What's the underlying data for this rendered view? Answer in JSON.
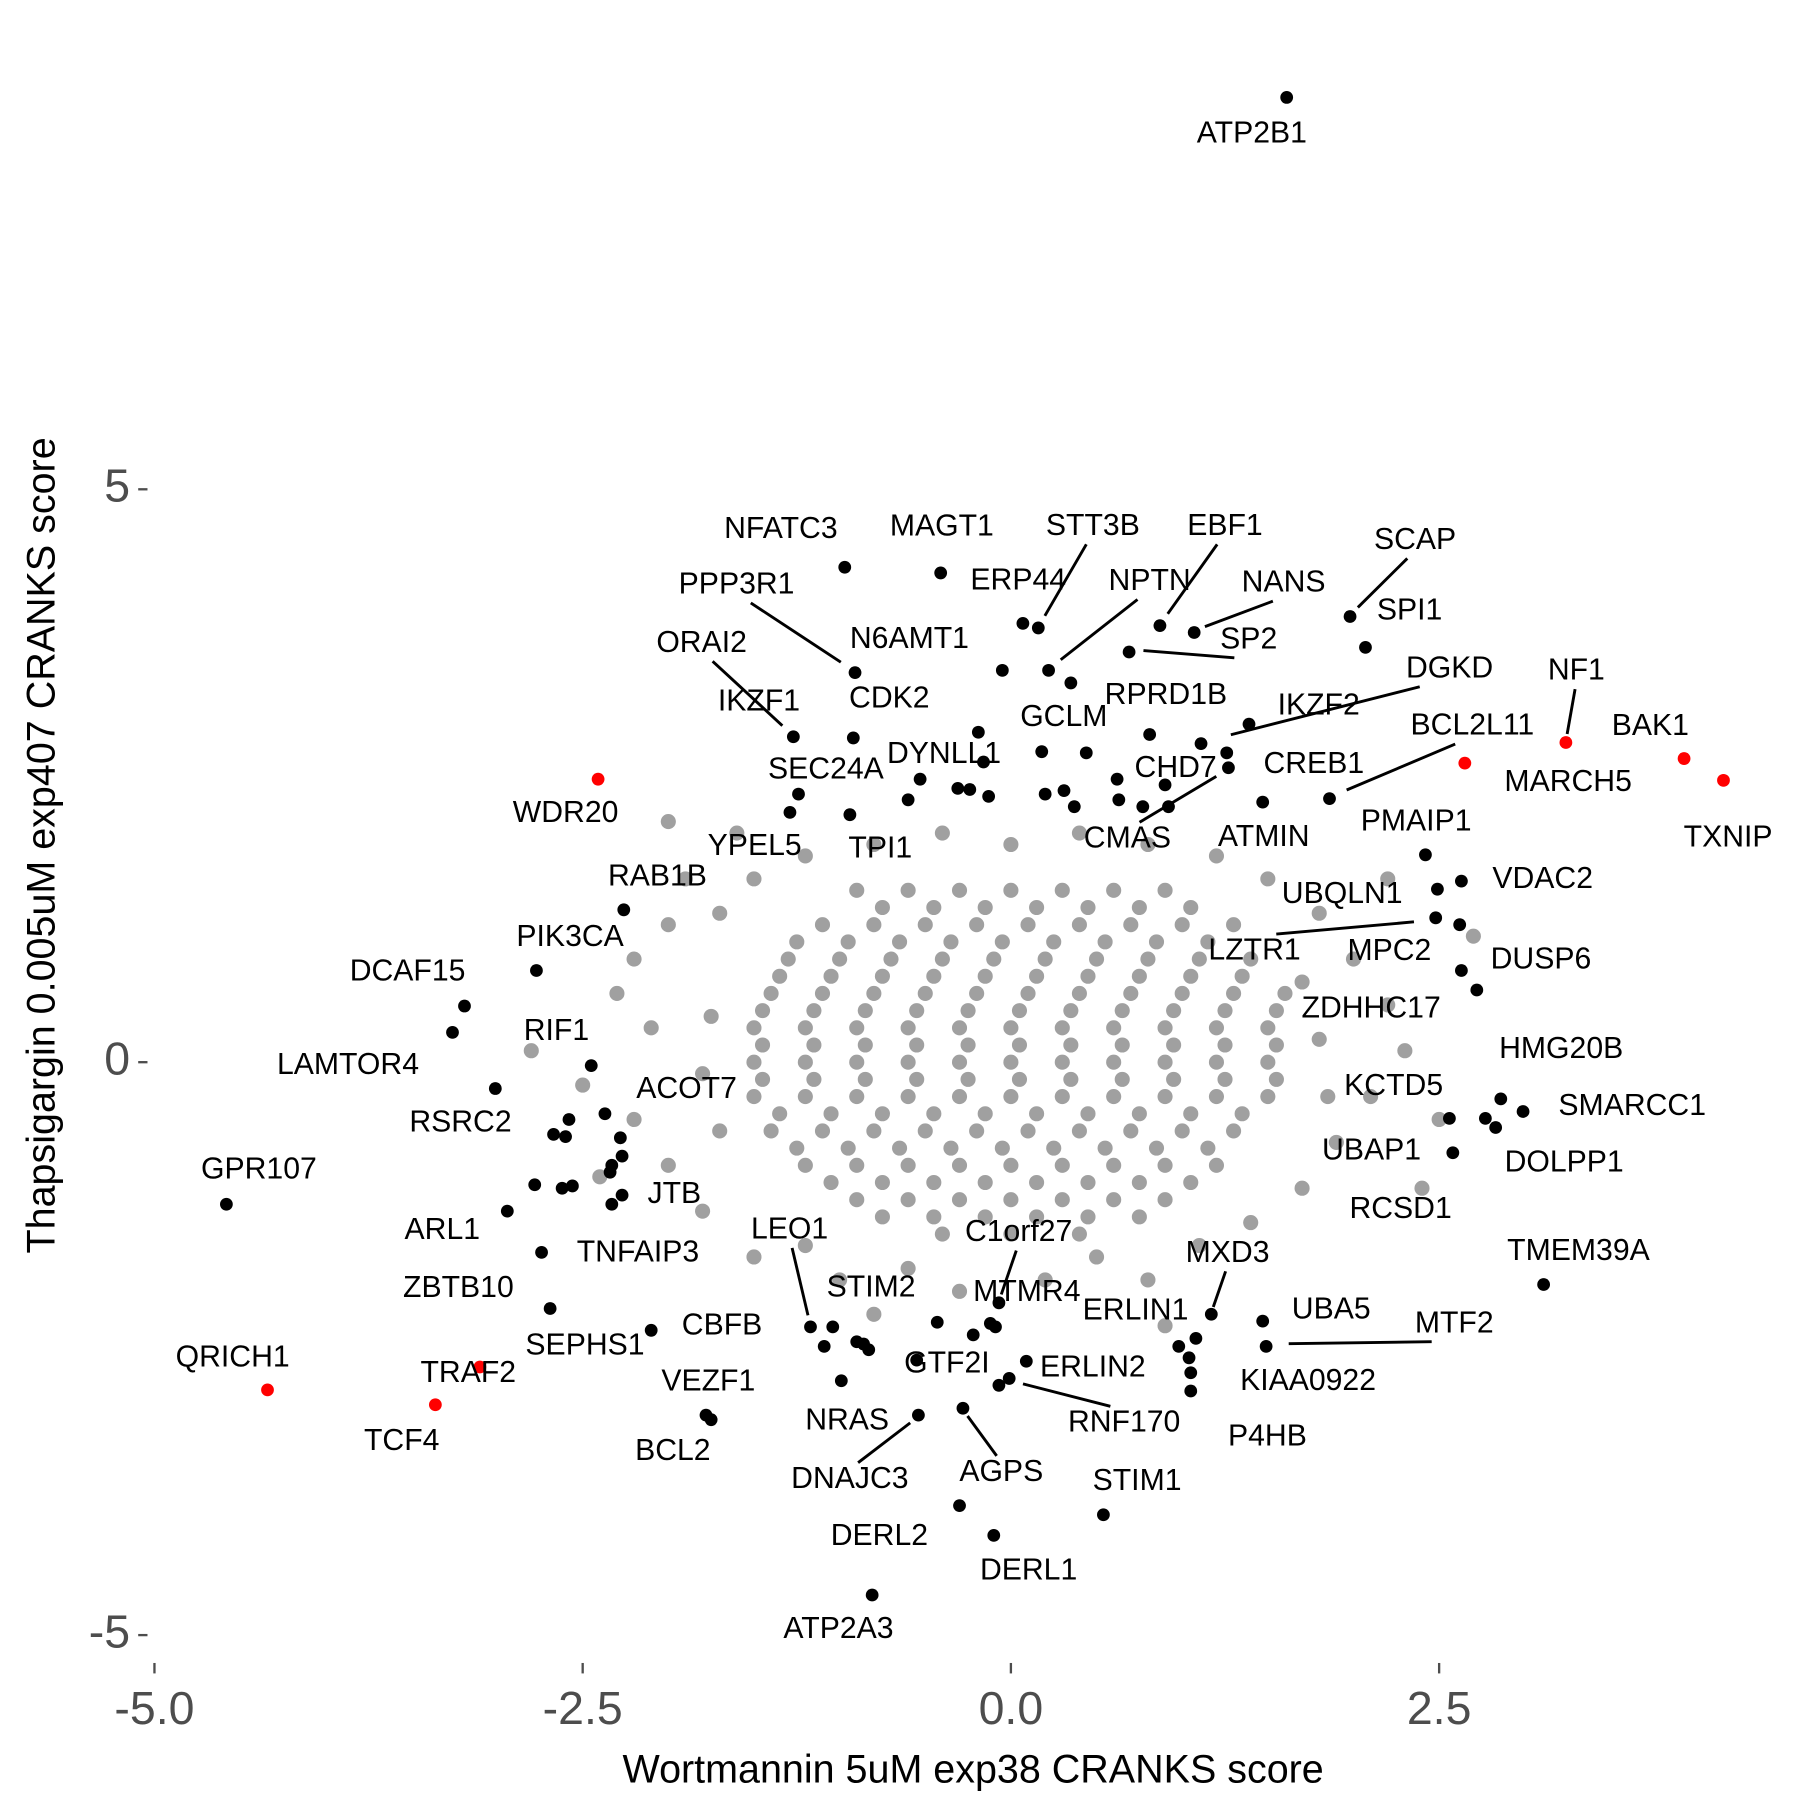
{
  "chart_data": {
    "type": "scatter",
    "x_label": "Wortmannin 5uM exp38 CRANKS score",
    "y_label": "Thapsigargin 0.005uM exp407 CRANKS score",
    "xlim": [
      -5,
      4.6
    ],
    "ylim": [
      -5,
      8.5
    ],
    "xticks": [
      {
        "value": -5,
        "label": "-5.0"
      },
      -2.5,
      {
        "value": 0,
        "label": "0.0"
      },
      2.5
    ],
    "yticks": [
      -5,
      0,
      5
    ],
    "grid": false,
    "series": [
      {
        "color": "#a0a0a0",
        "x": [
          -0.9,
          -0.6,
          -0.3,
          0,
          0.3,
          0.6,
          0.9,
          -0.75,
          -0.45,
          -0.15,
          0.15,
          0.45,
          0.75,
          1.05,
          -1.1,
          -0.8,
          -0.5,
          -0.2,
          0.1,
          0.4,
          0.7,
          1.0,
          1.3,
          -1.25,
          -0.95,
          -0.65,
          -0.35,
          -0.05,
          0.25,
          0.55,
          0.85,
          1.15,
          -1.3,
          -1.0,
          -0.7,
          -0.4,
          -0.1,
          0.2,
          0.5,
          0.8,
          1.1,
          1.4,
          -1.35,
          -1.05,
          -0.75,
          -0.45,
          -0.15,
          0.15,
          0.45,
          0.75,
          1.05,
          1.35,
          -1.4,
          -1.1,
          -0.8,
          -0.5,
          -0.2,
          0.1,
          0.4,
          0.7,
          1.0,
          1.3,
          1.6,
          -1.45,
          -1.15,
          -0.85,
          -0.55,
          -0.25,
          0.05,
          0.35,
          0.65,
          0.95,
          1.25,
          1.55,
          -1.5,
          -1.2,
          -0.9,
          -0.6,
          -0.3,
          0,
          0.3,
          0.6,
          0.9,
          1.2,
          1.5,
          -1.45,
          -1.15,
          -0.85,
          -0.55,
          -0.25,
          0.05,
          0.35,
          0.65,
          0.95,
          1.25,
          1.55,
          -1.5,
          -1.2,
          -0.9,
          -0.6,
          -0.3,
          0,
          0.3,
          0.6,
          0.9,
          1.2,
          1.5,
          -1.45,
          -1.15,
          -0.85,
          -0.55,
          -0.25,
          0.05,
          0.35,
          0.65,
          0.95,
          1.25,
          1.55,
          -1.5,
          -1.2,
          -0.9,
          -0.6,
          -0.3,
          0,
          0.3,
          0.6,
          0.9,
          1.2,
          1.5,
          -1.35,
          -1.05,
          -0.75,
          -0.45,
          -0.15,
          0.15,
          0.45,
          0.75,
          1.05,
          1.35,
          -1.4,
          -1.1,
          -0.8,
          -0.5,
          -0.2,
          0.1,
          0.4,
          0.7,
          1.0,
          1.3,
          -1.25,
          -0.95,
          -0.65,
          -0.35,
          -0.05,
          0.25,
          0.55,
          0.85,
          1.15,
          -1.2,
          -0.9,
          -0.6,
          -0.3,
          0,
          0.3,
          0.6,
          0.9,
          1.2,
          -1.05,
          -0.75,
          -0.45,
          -0.15,
          0.15,
          0.45,
          0.75,
          1.05,
          -0.9,
          -0.6,
          -0.3,
          0,
          0.3,
          0.6,
          0.9,
          -0.75,
          -0.45,
          -0.15,
          0.15,
          0.45,
          0.75,
          -0.4,
          0,
          0.4,
          -1.9,
          -2.0,
          -2.2,
          -2.3,
          -2.1,
          -2.5,
          -2.2,
          -2.0,
          -1.8,
          -1.5,
          -1.2,
          -1.0,
          -0.6,
          -0.3,
          0.2,
          0.5,
          0.8,
          1.1,
          1.4,
          1.7,
          1.9,
          2.1,
          2.3,
          2.2,
          2.0,
          1.8,
          1.5,
          1.2,
          0.8,
          0.4,
          0,
          -0.4,
          -0.8,
          -1.2,
          -1.5,
          -1.7,
          -1.75,
          -1.8,
          -1.7,
          1.8,
          1.85,
          1.7,
          -2.0,
          2.7,
          2.5,
          -2.4,
          -1.6,
          0.9,
          -0.8,
          2.2,
          -2.8,
          2.4
        ],
        "y": [
          1.5,
          1.5,
          1.5,
          1.5,
          1.5,
          1.5,
          1.5,
          1.35,
          1.35,
          1.35,
          1.35,
          1.35,
          1.35,
          1.35,
          1.2,
          1.2,
          1.2,
          1.2,
          1.2,
          1.2,
          1.2,
          1.2,
          1.2,
          1.05,
          1.05,
          1.05,
          1.05,
          1.05,
          1.05,
          1.05,
          1.05,
          1.05,
          0.9,
          0.9,
          0.9,
          0.9,
          0.9,
          0.9,
          0.9,
          0.9,
          0.9,
          0.9,
          0.75,
          0.75,
          0.75,
          0.75,
          0.75,
          0.75,
          0.75,
          0.75,
          0.75,
          0.75,
          0.6,
          0.6,
          0.6,
          0.6,
          0.6,
          0.6,
          0.6,
          0.6,
          0.6,
          0.6,
          0.6,
          0.45,
          0.45,
          0.45,
          0.45,
          0.45,
          0.45,
          0.45,
          0.45,
          0.45,
          0.45,
          0.45,
          0.3,
          0.3,
          0.3,
          0.3,
          0.3,
          0.3,
          0.3,
          0.3,
          0.3,
          0.3,
          0.3,
          0.15,
          0.15,
          0.15,
          0.15,
          0.15,
          0.15,
          0.15,
          0.15,
          0.15,
          0.15,
          0.15,
          0,
          0,
          0,
          0,
          0,
          0,
          0,
          0,
          0,
          0,
          0,
          -0.15,
          -0.15,
          -0.15,
          -0.15,
          -0.15,
          -0.15,
          -0.15,
          -0.15,
          -0.15,
          -0.15,
          -0.15,
          -0.3,
          -0.3,
          -0.3,
          -0.3,
          -0.3,
          -0.3,
          -0.3,
          -0.3,
          -0.3,
          -0.3,
          -0.3,
          -0.45,
          -0.45,
          -0.45,
          -0.45,
          -0.45,
          -0.45,
          -0.45,
          -0.45,
          -0.45,
          -0.45,
          -0.6,
          -0.6,
          -0.6,
          -0.6,
          -0.6,
          -0.6,
          -0.6,
          -0.6,
          -0.6,
          -0.6,
          -0.75,
          -0.75,
          -0.75,
          -0.75,
          -0.75,
          -0.75,
          -0.75,
          -0.75,
          -0.75,
          -0.9,
          -0.9,
          -0.9,
          -0.9,
          -0.9,
          -0.9,
          -0.9,
          -0.9,
          -0.9,
          -1.05,
          -1.05,
          -1.05,
          -1.05,
          -1.05,
          -1.05,
          -1.05,
          -1.05,
          -1.2,
          -1.2,
          -1.2,
          -1.2,
          -1.2,
          -1.2,
          -1.2,
          -1.35,
          -1.35,
          -1.35,
          -1.35,
          -1.35,
          -1.35,
          -1.5,
          -1.5,
          -1.5,
          1.6,
          1.2,
          0.9,
          0.6,
          0.3,
          -0.2,
          -0.5,
          -0.9,
          -1.3,
          -1.7,
          -1.6,
          -1.9,
          -1.8,
          -2.0,
          -1.9,
          -1.7,
          -1.9,
          -1.6,
          -1.4,
          -1.1,
          -0.7,
          -0.3,
          0.1,
          0.5,
          0.9,
          1.3,
          1.6,
          1.8,
          1.9,
          2.0,
          1.9,
          2.0,
          1.9,
          1.8,
          1.6,
          1.3,
          0.4,
          -0.1,
          -0.6,
          0.2,
          -0.3,
          0.7,
          2.1,
          1.1,
          -0.5,
          -1.0,
          2.0,
          -2.3,
          -2.2,
          1.6,
          0.1,
          -1.1
        ]
      },
      {
        "color": "#000000",
        "labels": [
          "ATP2B1",
          "NFATC3",
          "MAGT1",
          "STT3B",
          "EBF1",
          "SCAP",
          "ERP44",
          "NPTN",
          "NANS",
          "SP2",
          "SPI1",
          "PPP3R1",
          "ORAI2",
          "N6AMT1",
          "CDK2",
          "IKZF1",
          "GCLM",
          "RPRD1B",
          "DGKD",
          "IKZF2",
          "BCL2L11",
          "DYNLL1",
          "SEC24A",
          "CHD7",
          "CREB1",
          "CMAS",
          "ATMIN",
          "YPEL5",
          "TPI1",
          "PMAIP1",
          "VDAC2",
          "RAB1B",
          "UBQLN1",
          "PIK3CA",
          "LZTR1",
          "MPC2",
          "DUSP6",
          "DCAF15",
          "ZDHHC17",
          "LAMTOR4",
          "RIF1",
          "HMG20B",
          "SMARCC1",
          "KCTD5",
          "ACOT7",
          "RSRC2",
          "UBAP1",
          "DOLPP1",
          "GPR107",
          "JTB",
          "RCSD1",
          "ARL1",
          "LEO1",
          "C1orf27",
          "TNFAIP3",
          "MXD3",
          "TMEM39A",
          "ZBTB10",
          "STIM2",
          "MTMR4",
          "ERLIN1",
          "UBA5",
          "MTF2",
          "CBFB",
          "SEPHS1",
          "VEZF1",
          "BCL2",
          "GTF2I",
          "ERLIN2",
          "KIAA0922",
          "RNF170",
          "NRAS",
          "P4HB",
          "DNAJC3",
          "AGPS",
          "STIM1",
          "DERL2",
          "DERL1",
          "ATP2A3"
        ],
        "x": [
          1.61,
          -0.97,
          -0.41,
          0.16,
          0.87,
          1.98,
          0.07,
          0.22,
          1.07,
          0.69,
          2.07,
          -0.91,
          -1.27,
          -0.05,
          -0.92,
          -1.24,
          0.18,
          0.81,
          1.11,
          1.39,
          1.86,
          -0.16,
          -1.29,
          1.26,
          1.47,
          1.27,
          0.92,
          -0.94,
          -0.6,
          2.42,
          2.63,
          -2.26,
          2.49,
          -2.77,
          2.48,
          2.63,
          2.62,
          -3.19,
          2.72,
          -3.26,
          -2.45,
          2.86,
          2.99,
          2.56,
          -2.28,
          -3.01,
          2.58,
          2.83,
          -4.58,
          -2.27,
          2.77,
          -2.94,
          -1.17,
          -0.07,
          -2.74,
          1.17,
          3.11,
          -2.69,
          -1.04,
          -0.09,
          1.08,
          1.47,
          1.49,
          -0.9,
          -2.1,
          -1.78,
          -1.75,
          -0.55,
          0.98,
          1.05,
          -0.01,
          -0.99,
          1.05,
          -0.54,
          -0.28,
          0.54,
          -0.3,
          -0.1,
          -0.81
        ],
        "y": [
          8.42,
          4.32,
          4.27,
          3.79,
          3.81,
          3.89,
          3.83,
          3.42,
          3.75,
          3.58,
          3.62,
          3.4,
          2.84,
          3.42,
          2.83,
          2.34,
          2.71,
          2.86,
          2.78,
          2.95,
          2.3,
          2.62,
          2.18,
          2.7,
          2.27,
          2.57,
          2.23,
          2.16,
          2.29,
          1.81,
          1.58,
          1.33,
          1.51,
          0.8,
          1.26,
          0.8,
          1.2,
          0.49,
          0.63,
          0.26,
          -0.03,
          -0.32,
          -0.43,
          -0.49,
          -0.66,
          -0.23,
          -0.79,
          -0.57,
          -1.24,
          -1.16,
          -0.49,
          -1.3,
          -2.31,
          -2.1,
          -1.66,
          -2.2,
          -1.94,
          -2.15,
          -2.31,
          -2.31,
          -2.41,
          -2.26,
          -2.48,
          -2.44,
          -2.34,
          -3.08,
          -3.12,
          -2.6,
          -2.48,
          -2.71,
          -2.76,
          -2.78,
          -2.87,
          -3.08,
          -3.02,
          -3.95,
          -3.87,
          -4.13,
          -4.65
        ]
      },
      {
        "color": "#000000",
        "x": [
          0.35,
          0.44,
          0.31,
          0.2,
          0.37,
          0.62,
          0.63,
          0.77,
          0.9,
          -0.19,
          -0.31,
          -0.24,
          -0.13,
          -0.53,
          -2.67,
          -2.6,
          -2.58,
          -2.37,
          -2.27,
          -2.33,
          -2.34,
          -2.78,
          -2.62,
          -2.56,
          -2.33,
          -1.09,
          -0.83,
          -0.86,
          -0.43,
          -0.22,
          -0.12,
          -0.07,
          0.09,
          1.04
        ],
        "y": [
          3.31,
          2.7,
          2.37,
          2.34,
          2.23,
          2.47,
          2.29,
          2.23,
          2.42,
          2.88,
          2.39,
          2.38,
          2.32,
          2.47,
          -0.63,
          -0.65,
          -0.5,
          -0.45,
          -0.82,
          -0.9,
          -0.96,
          -1.07,
          -1.1,
          -1.08,
          -1.24,
          -2.48,
          -2.51,
          -2.46,
          -2.27,
          -2.38,
          -2.28,
          -2.82,
          -2.61,
          -2.58
        ]
      },
      {
        "color": "#ff0000",
        "labels": [
          "NF1",
          "BAK1",
          "MARCH5",
          "TXNIP",
          "WDR20",
          "QRICH1",
          "TRAF2",
          "TCF4"
        ],
        "x": [
          3.24,
          3.93,
          2.65,
          4.16,
          -2.41,
          -4.34,
          -3.1,
          -3.36
        ],
        "y": [
          2.79,
          2.65,
          2.61,
          2.46,
          2.47,
          -2.86,
          -2.66,
          -2.99
        ]
      }
    ]
  }
}
